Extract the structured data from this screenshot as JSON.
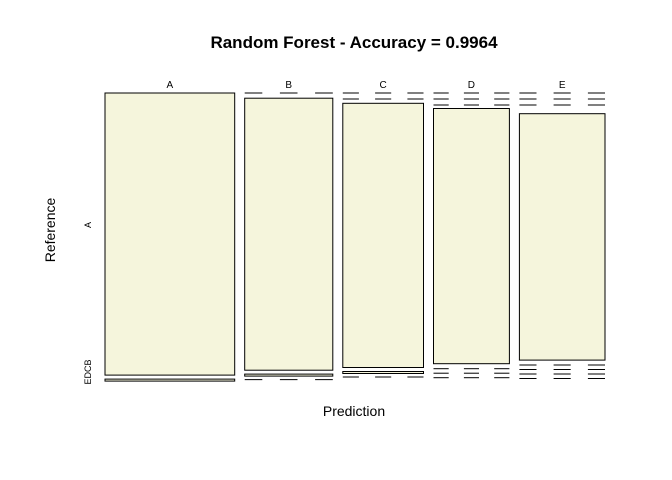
{
  "chart_data": {
    "type": "mosaic",
    "title": "Random Forest - Accuracy = 0.9964",
    "xlabel": "Prediction",
    "ylabel": "Reference",
    "x_categories": [
      "A",
      "B",
      "C",
      "D",
      "E"
    ],
    "y_categories": [
      "A",
      "B",
      "C",
      "D",
      "E"
    ],
    "y_tick_labels": [
      "A",
      "EDCB"
    ],
    "fill_color": "#f5f5dc",
    "column_widths": [
      0.265,
      0.18,
      0.165,
      0.155,
      0.175
    ],
    "main_cell_fraction": [
      0.983,
      0.965,
      0.955,
      0.94,
      0.925
    ],
    "legend": "none",
    "grid": false
  }
}
